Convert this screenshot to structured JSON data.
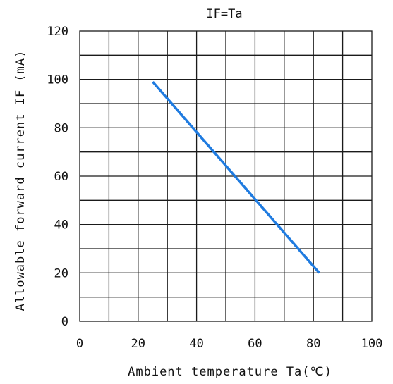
{
  "chart_data": {
    "type": "line",
    "title": "IF=Ta",
    "xlabel": "Ambient temperature Ta(℃)",
    "ylabel": "Allowable forward current IF (mA)",
    "xlim": [
      0,
      100
    ],
    "ylim": [
      0,
      120
    ],
    "xticks": [
      "0",
      "20",
      "40",
      "60",
      "80",
      "100"
    ],
    "yticks": [
      "0",
      "20",
      "40",
      "60",
      "80",
      "100",
      "120"
    ],
    "grid": true,
    "series": [
      {
        "color": "#1f7be0",
        "points": [
          {
            "x": 25,
            "y": 99
          },
          {
            "x": 82,
            "y": 20
          }
        ]
      }
    ]
  }
}
